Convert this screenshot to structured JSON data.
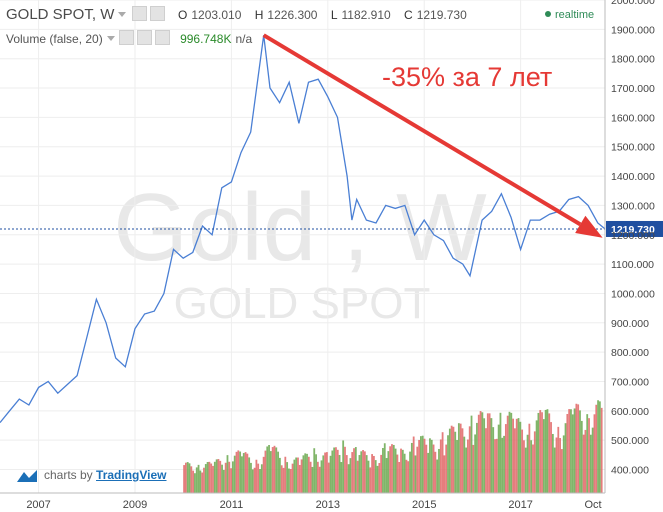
{
  "header": {
    "symbol": "GOLD SPOT, W",
    "open_label": "O",
    "open": "1203.010",
    "high_label": "H",
    "high": "1226.300",
    "low_label": "L",
    "low": "1182.910",
    "close_label": "C",
    "close": "1219.730",
    "realtime": "realtime"
  },
  "volume_legend": {
    "label": "Volume (false, 20)",
    "value": "996.748K",
    "extra": "n/a"
  },
  "watermark": {
    "big": "Gold , W",
    "small": "GOLD SPOT"
  },
  "annotation": {
    "text": "-35% за 7 лет",
    "color": "#e53935"
  },
  "branding": {
    "prefix": "charts by",
    "name": "TradingView"
  },
  "colors": {
    "price_line": "#4a7fd4",
    "vol_up": "#6aa84f",
    "vol_down": "#e06666",
    "last_price_box": "#1f4fa0"
  },
  "chart_data": {
    "type": "line",
    "x_ticks": [
      "2007",
      "2009",
      "2011",
      "2013",
      "2015",
      "2017",
      "Oct"
    ],
    "x_tick_years": [
      2007,
      2009,
      2011,
      2013,
      2015,
      2017,
      2018.75
    ],
    "xlim": [
      2006.2,
      2018.75
    ],
    "y_ticks": [
      "400.000",
      "500.000",
      "600.000",
      "700.000",
      "800.000",
      "900.000",
      "1000.000",
      "1100.000",
      "1200.000",
      "1300.000",
      "1400.000",
      "1500.000",
      "1600.000",
      "1700.000",
      "1800.000",
      "1900.000",
      "2000.000"
    ],
    "ylim": [
      320,
      2000
    ],
    "last_price": "1219.730",
    "last_price_value": 1219.73,
    "series": [
      {
        "x": [
          2006.2,
          2006.4,
          2006.6,
          2006.8,
          2007.0,
          2007.2,
          2007.4,
          2007.6,
          2007.8,
          2008.0,
          2008.2,
          2008.4,
          2008.6,
          2008.8,
          2009.0,
          2009.2,
          2009.4,
          2009.6,
          2009.8,
          2010.0,
          2010.2,
          2010.4,
          2010.6,
          2010.8,
          2011.0,
          2011.2,
          2011.4,
          2011.67,
          2011.8,
          2012.0,
          2012.2,
          2012.4,
          2012.6,
          2012.8,
          2013.0,
          2013.2,
          2013.4,
          2013.5,
          2013.6,
          2013.8,
          2014.0,
          2014.2,
          2014.4,
          2014.6,
          2014.8,
          2015.0,
          2015.2,
          2015.4,
          2015.6,
          2015.8,
          2015.95,
          2016.2,
          2016.4,
          2016.6,
          2016.8,
          2017.0,
          2017.2,
          2017.4,
          2017.6,
          2017.8,
          2018.0,
          2018.2,
          2018.4,
          2018.6,
          2018.75
        ],
        "y": [
          560,
          600,
          640,
          620,
          680,
          700,
          660,
          690,
          720,
          850,
          980,
          900,
          780,
          750,
          880,
          930,
          940,
          1000,
          1150,
          1120,
          1140,
          1230,
          1200,
          1360,
          1380,
          1480,
          1550,
          1880,
          1700,
          1650,
          1720,
          1580,
          1720,
          1730,
          1670,
          1600,
          1400,
          1250,
          1320,
          1250,
          1240,
          1300,
          1290,
          1300,
          1200,
          1250,
          1200,
          1180,
          1120,
          1100,
          1060,
          1250,
          1280,
          1340,
          1260,
          1150,
          1250,
          1250,
          1270,
          1280,
          1320,
          1330,
          1300,
          1240,
          1220
        ]
      }
    ],
    "volume": {
      "x": [
        2010.0,
        2010.3,
        2010.6,
        2010.9,
        2011.2,
        2011.5,
        2011.8,
        2012.1,
        2012.4,
        2012.7,
        2013.0,
        2013.3,
        2013.6,
        2013.9,
        2014.2,
        2014.5,
        2014.8,
        2015.1,
        2015.4,
        2015.7,
        2016.0,
        2016.3,
        2016.6,
        2016.9,
        2017.2,
        2017.5,
        2017.8,
        2018.1,
        2018.4,
        2018.7
      ],
      "values": [
        0.3,
        0.35,
        0.3,
        0.45,
        0.42,
        0.38,
        0.5,
        0.4,
        0.35,
        0.48,
        0.4,
        0.55,
        0.45,
        0.4,
        0.52,
        0.45,
        0.6,
        0.55,
        0.65,
        0.7,
        0.85,
        0.8,
        0.9,
        0.75,
        0.8,
        0.85,
        0.78,
        0.88,
        1.0,
        0.9
      ]
    },
    "trend_arrow": {
      "from": [
        2011.67,
        1880
      ],
      "to": [
        2018.7,
        1190
      ]
    }
  }
}
